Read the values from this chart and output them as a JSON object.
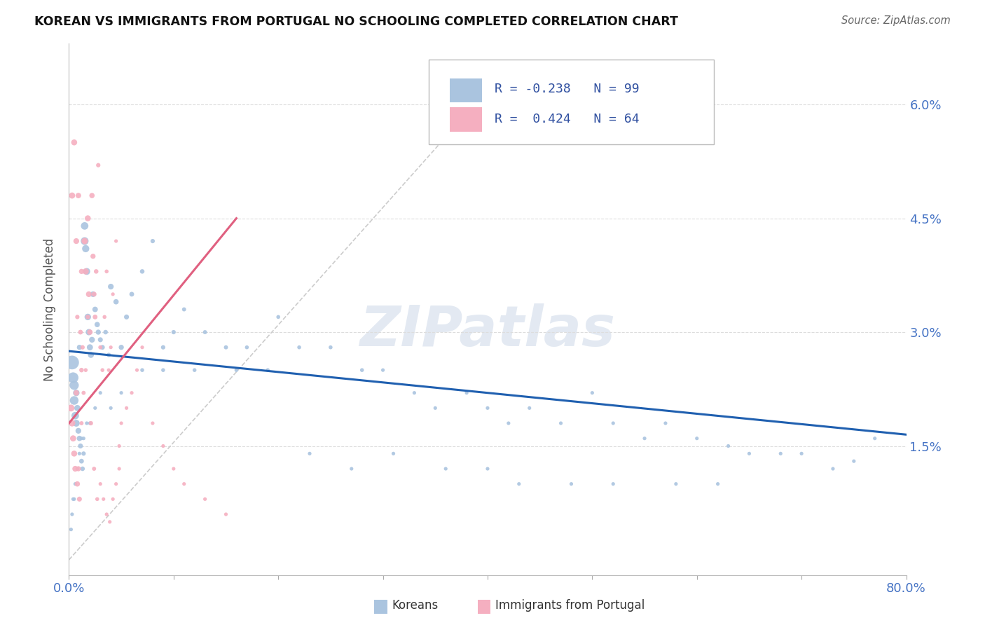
{
  "title": "KOREAN VS IMMIGRANTS FROM PORTUGAL NO SCHOOLING COMPLETED CORRELATION CHART",
  "source": "Source: ZipAtlas.com",
  "ylabel": "No Schooling Completed",
  "xlim": [
    0.0,
    0.8
  ],
  "ylim": [
    -0.002,
    0.068
  ],
  "ytick_vals": [
    0.015,
    0.03,
    0.045,
    0.06
  ],
  "ytick_labels": [
    "1.5%",
    "3.0%",
    "4.5%",
    "6.0%"
  ],
  "xtick_vals": [
    0.0,
    0.1,
    0.2,
    0.3,
    0.4,
    0.5,
    0.6,
    0.7,
    0.8
  ],
  "xtick_labels": [
    "0.0%",
    "",
    "",
    "",
    "",
    "",
    "",
    "",
    "80.0%"
  ],
  "blue_color": "#aac4df",
  "pink_color": "#f5afc0",
  "blue_line_color": "#2060b0",
  "pink_line_color": "#e06080",
  "tick_color": "#4472c4",
  "watermark": "ZIPatlas",
  "legend_R_color": "#3050a0",
  "legend_N_color": "#3050a0",
  "blue_scatter_x": [
    0.003,
    0.004,
    0.005,
    0.005,
    0.006,
    0.007,
    0.007,
    0.008,
    0.009,
    0.01,
    0.01,
    0.011,
    0.012,
    0.013,
    0.014,
    0.015,
    0.015,
    0.016,
    0.017,
    0.018,
    0.019,
    0.02,
    0.021,
    0.022,
    0.023,
    0.025,
    0.027,
    0.028,
    0.03,
    0.032,
    0.035,
    0.038,
    0.04,
    0.045,
    0.05,
    0.055,
    0.06,
    0.07,
    0.08,
    0.09,
    0.1,
    0.11,
    0.13,
    0.15,
    0.17,
    0.2,
    0.22,
    0.25,
    0.28,
    0.3,
    0.33,
    0.35,
    0.38,
    0.4,
    0.42,
    0.44,
    0.47,
    0.5,
    0.52,
    0.55,
    0.57,
    0.6,
    0.63,
    0.65,
    0.68,
    0.7,
    0.73,
    0.75,
    0.77,
    0.62,
    0.58,
    0.52,
    0.48,
    0.43,
    0.4,
    0.36,
    0.31,
    0.27,
    0.23,
    0.19,
    0.16,
    0.12,
    0.09,
    0.07,
    0.05,
    0.04,
    0.03,
    0.025,
    0.02,
    0.017,
    0.014,
    0.012,
    0.01,
    0.008,
    0.006,
    0.005,
    0.004,
    0.003,
    0.002
  ],
  "blue_scatter_y": [
    0.026,
    0.024,
    0.023,
    0.021,
    0.019,
    0.018,
    0.022,
    0.02,
    0.017,
    0.016,
    0.028,
    0.015,
    0.013,
    0.012,
    0.014,
    0.042,
    0.044,
    0.041,
    0.038,
    0.032,
    0.03,
    0.028,
    0.027,
    0.029,
    0.035,
    0.033,
    0.031,
    0.03,
    0.029,
    0.028,
    0.03,
    0.027,
    0.036,
    0.034,
    0.028,
    0.032,
    0.035,
    0.038,
    0.042,
    0.028,
    0.03,
    0.033,
    0.03,
    0.028,
    0.028,
    0.032,
    0.028,
    0.028,
    0.025,
    0.025,
    0.022,
    0.02,
    0.022,
    0.02,
    0.018,
    0.02,
    0.018,
    0.022,
    0.018,
    0.016,
    0.018,
    0.016,
    0.015,
    0.014,
    0.014,
    0.014,
    0.012,
    0.013,
    0.016,
    0.01,
    0.01,
    0.01,
    0.01,
    0.01,
    0.012,
    0.012,
    0.014,
    0.012,
    0.014,
    0.025,
    0.025,
    0.025,
    0.025,
    0.025,
    0.022,
    0.02,
    0.022,
    0.02,
    0.018,
    0.018,
    0.016,
    0.016,
    0.014,
    0.012,
    0.01,
    0.008,
    0.008,
    0.006,
    0.004
  ],
  "blue_scatter_sizes": [
    200,
    120,
    90,
    80,
    60,
    50,
    45,
    40,
    35,
    30,
    28,
    26,
    24,
    22,
    20,
    65,
    60,
    55,
    50,
    45,
    42,
    40,
    38,
    36,
    34,
    32,
    30,
    28,
    26,
    24,
    22,
    20,
    35,
    30,
    28,
    26,
    24,
    22,
    20,
    20,
    20,
    18,
    18,
    18,
    16,
    16,
    16,
    16,
    16,
    14,
    14,
    14,
    14,
    14,
    14,
    14,
    14,
    14,
    14,
    14,
    14,
    14,
    14,
    14,
    14,
    14,
    14,
    14,
    14,
    14,
    14,
    14,
    14,
    14,
    14,
    14,
    14,
    14,
    14,
    16,
    16,
    16,
    16,
    16,
    14,
    14,
    14,
    14,
    14,
    14,
    14,
    14,
    14,
    14,
    14,
    14,
    14,
    14,
    14
  ],
  "pink_scatter_x": [
    0.002,
    0.003,
    0.004,
    0.005,
    0.006,
    0.007,
    0.008,
    0.009,
    0.01,
    0.011,
    0.012,
    0.013,
    0.014,
    0.015,
    0.016,
    0.018,
    0.019,
    0.02,
    0.022,
    0.023,
    0.024,
    0.025,
    0.026,
    0.028,
    0.03,
    0.032,
    0.034,
    0.036,
    0.038,
    0.04,
    0.042,
    0.045,
    0.048,
    0.05,
    0.055,
    0.06,
    0.065,
    0.07,
    0.08,
    0.09,
    0.1,
    0.11,
    0.13,
    0.15,
    0.003,
    0.005,
    0.007,
    0.009,
    0.012,
    0.015,
    0.018,
    0.021,
    0.024,
    0.027,
    0.03,
    0.033,
    0.036,
    0.039,
    0.042,
    0.045,
    0.048,
    0.008,
    0.012,
    0.016
  ],
  "pink_scatter_y": [
    0.02,
    0.018,
    0.016,
    0.014,
    0.012,
    0.022,
    0.01,
    0.012,
    0.008,
    0.03,
    0.025,
    0.028,
    0.022,
    0.042,
    0.038,
    0.045,
    0.035,
    0.03,
    0.048,
    0.04,
    0.035,
    0.032,
    0.038,
    0.052,
    0.028,
    0.025,
    0.032,
    0.038,
    0.025,
    0.028,
    0.035,
    0.042,
    0.015,
    0.018,
    0.02,
    0.022,
    0.025,
    0.028,
    0.018,
    0.015,
    0.012,
    0.01,
    0.008,
    0.006,
    0.048,
    0.055,
    0.042,
    0.048,
    0.038,
    0.042,
    0.032,
    0.018,
    0.012,
    0.008,
    0.01,
    0.008,
    0.006,
    0.005,
    0.008,
    0.01,
    0.012,
    0.032,
    0.018,
    0.025
  ],
  "pink_scatter_sizes": [
    50,
    45,
    40,
    38,
    35,
    33,
    30,
    28,
    26,
    24,
    22,
    20,
    18,
    45,
    40,
    38,
    35,
    32,
    30,
    28,
    26,
    24,
    22,
    20,
    18,
    16,
    16,
    16,
    14,
    14,
    14,
    14,
    14,
    14,
    14,
    14,
    14,
    14,
    14,
    14,
    14,
    14,
    14,
    14,
    40,
    38,
    35,
    32,
    28,
    25,
    22,
    20,
    18,
    16,
    14,
    14,
    14,
    14,
    14,
    14,
    14,
    20,
    18,
    16
  ],
  "blue_trend_x": [
    0.0,
    0.8
  ],
  "blue_trend_y": [
    0.0275,
    0.0165
  ],
  "pink_trend_x": [
    0.0,
    0.16
  ],
  "pink_trend_y": [
    0.018,
    0.045
  ],
  "ref_line_x": [
    0.0,
    0.42
  ],
  "ref_line_y": [
    0.0,
    0.065
  ]
}
